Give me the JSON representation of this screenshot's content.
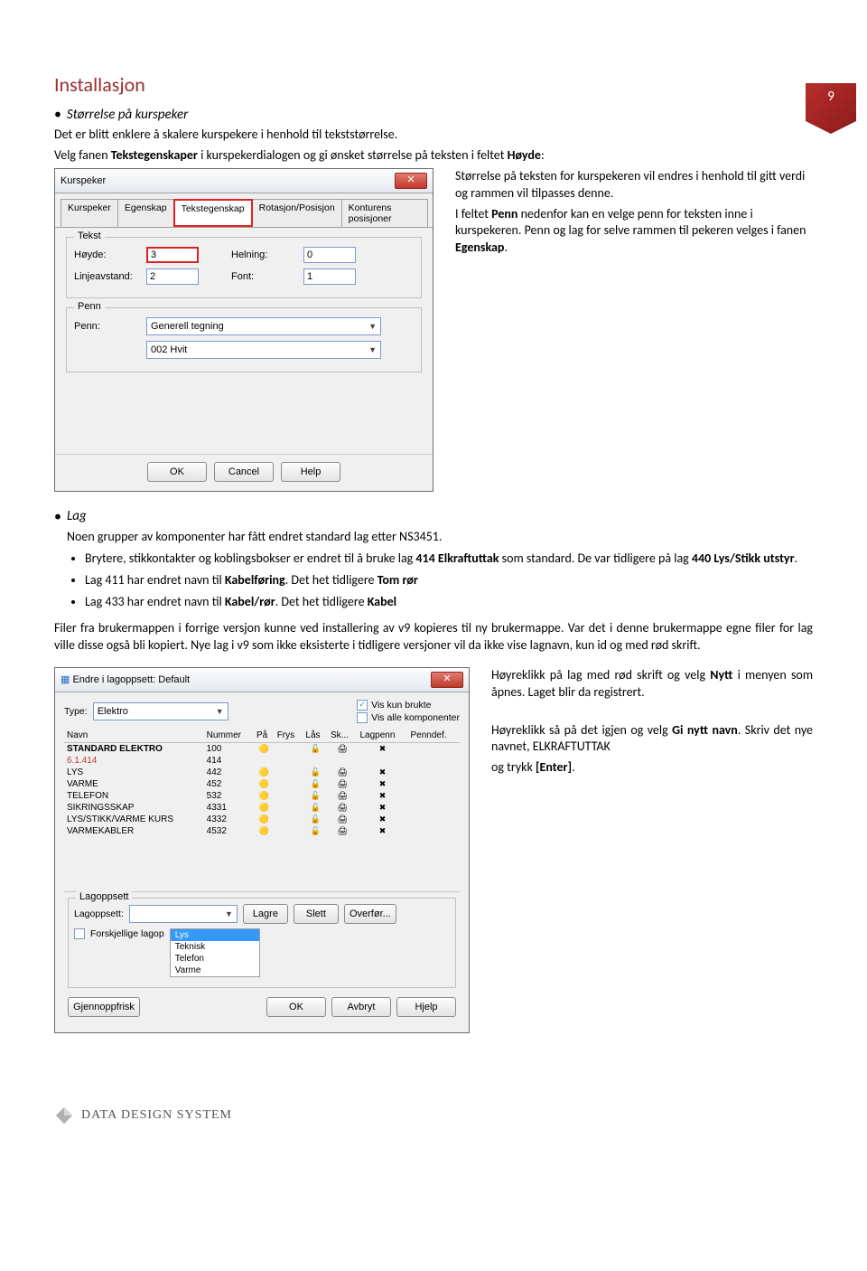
{
  "page_number": "9",
  "section_title": "Installasjon",
  "sub1": {
    "heading": "Størrelse på kurspeker",
    "p1": "Det er blitt enklere å skalere kurspekere i henhold til tekststørrelse.",
    "p2a": "Velg fanen ",
    "p2b": "Tekstegenskaper",
    "p2c": " i kurspekerdialogen og gi ønsket størrelse på teksten i feltet ",
    "p2d": "Høyde",
    "p2e": ":"
  },
  "dialog1": {
    "title": "Kurspeker",
    "tabs": [
      "Kurspeker",
      "Egenskap",
      "Tekstegenskap",
      "Rotasjon/Posisjon",
      "Konturens posisjoner"
    ],
    "active_tab_index": 2,
    "group_tekst": "Tekst",
    "label_hoyde": "Høyde:",
    "val_hoyde": "3",
    "label_helning": "Helning:",
    "val_helning": "0",
    "label_linje": "Linjeavstand:",
    "val_linje": "2",
    "label_font": "Font:",
    "val_font": "1",
    "group_penn": "Penn",
    "label_penn": "Penn:",
    "dd_penn": "Generell tegning",
    "dd_color": "002  Hvit",
    "btn_ok": "OK",
    "btn_cancel": "Cancel",
    "btn_help": "Help"
  },
  "aside1": {
    "p1a": "Størrelse på teksten for kurspekeren vil endres i henhold til gitt verdi og rammen vil tilpasses denne.",
    "p2a": "I feltet ",
    "p2b": "Penn",
    "p2c": " nedenfor kan en velge penn for teksten inne i kurspekeren. Penn og lag for selve rammen til pekeren velges i fanen ",
    "p2d": "Egenskap",
    "p2e": "."
  },
  "sub2": {
    "heading": "Lag",
    "intro": "Noen grupper av komponenter har fått endret standard lag etter NS3451.",
    "bullets": [
      {
        "pre": "Brytere, stikkontakter og koblingsbokser er endret til å bruke lag ",
        "b": "414 Elkraftuttak",
        "post": " som standard. De var tidligere på lag ",
        "b2": "440 Lys/Stikk utstyr",
        "post2": "."
      },
      {
        "pre": "Lag 411 har endret navn til ",
        "b": "Kabelføring",
        "post": ". Det het tidligere ",
        "b2": "Tom rør",
        "post2": ""
      },
      {
        "pre": "Lag 433 har endret navn til ",
        "b": "Kabel/rør",
        "post": ". Det het tidligere ",
        "b2": "Kabel",
        "post2": ""
      }
    ],
    "para": "Filer fra brukermappen i forrige versjon kunne ved installering av v9 kopieres til ny brukermappe. Var det i denne brukermappe egne filer for lag ville disse også bli kopiert. Nye lag i v9 som ikke eksisterte i tidligere versjoner vil da ikke vise lagnavn, kun id og med rød skrift."
  },
  "dialog2": {
    "title": "Endre i lagoppsett: Default",
    "label_type": "Type:",
    "type_value": "Elektro",
    "chk_vis_kun": "Vis kun brukte",
    "chk_vis_alle": "Vis alle komponenter",
    "chk_vis_kun_checked": true,
    "chk_vis_alle_checked": false,
    "columns": [
      "Navn",
      "Nummer",
      "På",
      "Frys",
      "Lås",
      "Sk...",
      "Lagpenn",
      "Penndef."
    ],
    "rows": [
      {
        "name": "STANDARD ELEKTRO",
        "num": "100",
        "bold": true,
        "red": false,
        "icons": [
          "🟡",
          "",
          "🔓",
          "🖨",
          "✖",
          ""
        ]
      },
      {
        "name": "6.1.414",
        "num": "414",
        "bold": false,
        "red": true,
        "icons": [
          "",
          "",
          "",
          "",
          "",
          ""
        ]
      },
      {
        "name": "LYS",
        "num": "442",
        "bold": false,
        "red": false,
        "icons": [
          "🟡",
          "",
          "🔓",
          "🖨",
          "✖",
          ""
        ]
      },
      {
        "name": "VARME",
        "num": "452",
        "bold": false,
        "red": false,
        "icons": [
          "🟡",
          "",
          "🔓",
          "🖨",
          "✖",
          ""
        ]
      },
      {
        "name": "TELEFON",
        "num": "532",
        "bold": false,
        "red": false,
        "icons": [
          "🟡",
          "",
          "🔓",
          "🖨",
          "✖",
          ""
        ]
      },
      {
        "name": "SIKRINGSSKAP",
        "num": "4331",
        "bold": false,
        "red": false,
        "icons": [
          "🟡",
          "",
          "🔓",
          "🖨",
          "✖",
          ""
        ]
      },
      {
        "name": "LYS/STIKK/VARME KURS",
        "num": "4332",
        "bold": false,
        "red": false,
        "icons": [
          "🟡",
          "",
          "🔓",
          "🖨",
          "✖",
          ""
        ]
      },
      {
        "name": "VARMEKABLER",
        "num": "4532",
        "bold": false,
        "red": false,
        "icons": [
          "🟡",
          "",
          "🔓",
          "🖨",
          "✖",
          ""
        ]
      }
    ],
    "grp_lagoppsett": "Lagoppsett",
    "label_lagoppsett": "Lagoppsett:",
    "btn_lagre": "Lagre",
    "btn_slett": "Slett",
    "btn_overfor": "Overfør...",
    "chk_forskjellige": "Forskjellige lagop",
    "lagopp_options": [
      "Lys",
      "Teknisk",
      "Telefon",
      "Varme"
    ],
    "btn_gjennopp": "Gjennoppfrisk",
    "btn_ok": "OK",
    "btn_avbryt": "Avbryt",
    "btn_hjelp": "Hjelp"
  },
  "aside2": {
    "p1a": "Høyreklikk på lag med rød skrift og velg ",
    "p1b": "Nytt",
    "p1c": " i menyen som åpnes. Laget blir da registrert.",
    "p2a": "Høyreklikk så på det igjen og velg ",
    "p2b": "Gi nytt navn",
    "p2c": ". Skriv det nye navnet, ELKRAFTUTTAK",
    "p3a": "og trykk ",
    "p3b": "[Enter]",
    "p3c": "."
  },
  "footer": {
    "brand": "DATA DESIGN SYSTEM"
  },
  "colors": {
    "heading": "#9b2e2e",
    "badge_bg": "#b82e2e",
    "highlight_border": "#d22",
    "red_text": "#c0392b"
  }
}
